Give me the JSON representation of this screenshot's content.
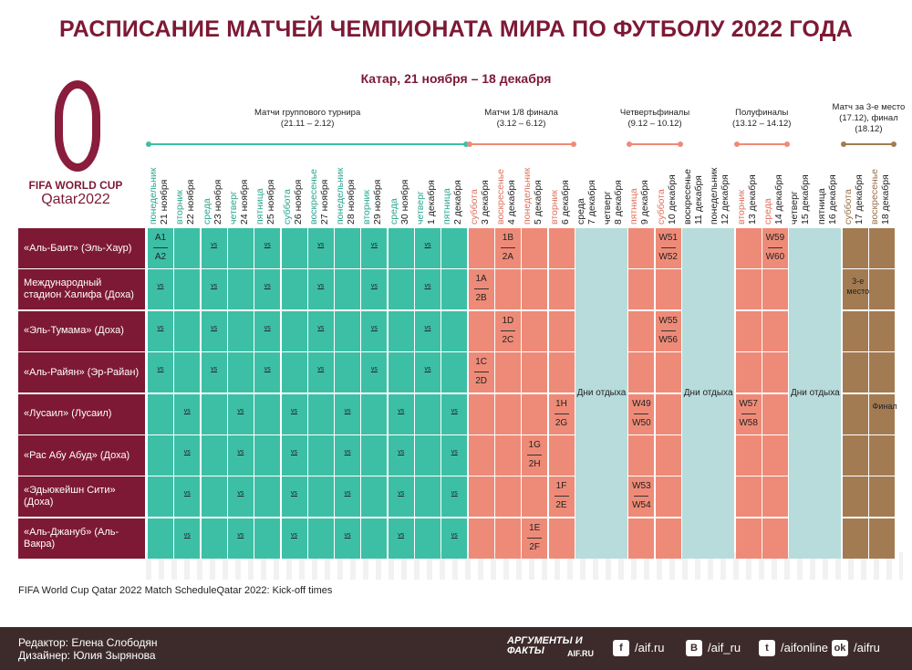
{
  "header": {
    "title": "РАСПИСАНИЕ МАТЧЕЙ ЧЕМПИОНАТА МИРА ПО ФУТБОЛУ 2022 ГОДА",
    "subtitle": "Катар, 21 ноября – 18 декабря"
  },
  "logo": {
    "line1": "FIFA WORLD CUP",
    "line2": "Qatar2022"
  },
  "phases": [
    {
      "title": "Матчи группового турнира",
      "range": "(21.11 – 2.12)",
      "color": "#3dbfa6",
      "weekday_color": "#27a68e",
      "days": [
        {
          "weekday": "понедельник",
          "date": "21 ноября"
        },
        {
          "weekday": "вторник",
          "date": "22 ноября"
        },
        {
          "weekday": "среда",
          "date": "23 ноября"
        },
        {
          "weekday": "четверг",
          "date": "24 ноября"
        },
        {
          "weekday": "пятница",
          "date": "25 ноября"
        },
        {
          "weekday": "суббота",
          "date": "26 ноября"
        },
        {
          "weekday": "воскресенье",
          "date": "27 ноября"
        },
        {
          "weekday": "понедельник",
          "date": "28 ноября"
        },
        {
          "weekday": "вторник",
          "date": "29 ноября"
        },
        {
          "weekday": "среда",
          "date": "30 ноября"
        },
        {
          "weekday": "четверг",
          "date": "1 декабря"
        },
        {
          "weekday": "пятница",
          "date": "2 декабря"
        }
      ]
    },
    {
      "title": "Матчи 1/8 финала",
      "range": "(3.12 – 6.12)",
      "color": "#ee8b78",
      "weekday_color": "#e0705c",
      "days": [
        {
          "weekday": "суббота",
          "date": "3 декабря"
        },
        {
          "weekday": "воскресенье",
          "date": "4 декабря"
        },
        {
          "weekday": "понедельник",
          "date": "5 декабря"
        },
        {
          "weekday": "вторник",
          "date": "6 декабря"
        }
      ]
    },
    {
      "label": "Дни отдыха",
      "color": "#b8dcdb",
      "weekday_color": "#222222",
      "days": [
        {
          "weekday": "среда",
          "date": "7 декабря"
        },
        {
          "weekday": "четверг",
          "date": "8 декабря"
        }
      ]
    },
    {
      "title": "Четвертьфиналы",
      "range": "(9.12 – 10.12)",
      "color": "#ee8b78",
      "weekday_color": "#e0705c",
      "days": [
        {
          "weekday": "пятница",
          "date": "9 декабря"
        },
        {
          "weekday": "суббота",
          "date": "10 декабря"
        }
      ]
    },
    {
      "label": "Дни отдыха",
      "color": "#b8dcdb",
      "weekday_color": "#222222",
      "days": [
        {
          "weekday": "воскресенье",
          "date": "11 декабря"
        },
        {
          "weekday": "понедельник",
          "date": "12 декабря"
        }
      ]
    },
    {
      "title": "Полуфиналы",
      "range": "(13.12 – 14.12)",
      "color": "#ee8b78",
      "weekday_color": "#e0705c",
      "days": [
        {
          "weekday": "вторник",
          "date": "13 декабря"
        },
        {
          "weekday": "среда",
          "date": "14 декабря"
        }
      ]
    },
    {
      "label": "Дни отдыха",
      "color": "#b8dcdb",
      "weekday_color": "#222222",
      "days": [
        {
          "weekday": "четверг",
          "date": "15 декабря"
        },
        {
          "weekday": "пятница",
          "date": "16 декабря"
        }
      ]
    },
    {
      "title": "Матч за 3-е место (17.12), финал (18.12)",
      "color": "#a37b53",
      "weekday_color": "#9a7048",
      "days": [
        {
          "weekday": "суббота",
          "date": "17 декабря"
        },
        {
          "weekday": "воскресенье",
          "date": "18 декабря"
        }
      ]
    }
  ],
  "stadiums": [
    {
      "name": "«Аль-Баит» (Эль-Хаур)",
      "cells": [
        {
          "top": "A1",
          "bottom": "A2"
        },
        null,
        "vs",
        null,
        "vs",
        null,
        "vs",
        null,
        "vs",
        null,
        "vs",
        null,
        null,
        {
          "top": "1B",
          "bottom": "2A"
        },
        null,
        null,
        null,
        null,
        null,
        {
          "top": "W51",
          "bottom": "W52"
        },
        null,
        null,
        null,
        {
          "top": "W59",
          "bottom": "W60"
        },
        null,
        null,
        null,
        null
      ]
    },
    {
      "name": "Международный стадион Халифа (Доха)",
      "cells": [
        "vs",
        null,
        "vs",
        null,
        "vs",
        null,
        "vs",
        null,
        "vs",
        null,
        "vs",
        null,
        {
          "top": "1A",
          "bottom": "2B"
        },
        null,
        null,
        null,
        null,
        null,
        null,
        null,
        null,
        null,
        null,
        null,
        null,
        null,
        "3-е место",
        null
      ]
    },
    {
      "name": "«Эль-Тумама» (Доха)",
      "cells": [
        "vs",
        null,
        "vs",
        null,
        "vs",
        null,
        "vs",
        null,
        "vs",
        null,
        "vs",
        null,
        null,
        {
          "top": "1D",
          "bottom": "2C"
        },
        null,
        null,
        null,
        null,
        null,
        {
          "top": "W55",
          "bottom": "W56"
        },
        null,
        null,
        null,
        null,
        null,
        null,
        null,
        null
      ]
    },
    {
      "name": "«Аль-Райян» (Эр-Райан)",
      "cells": [
        "vs",
        null,
        "vs",
        null,
        "vs",
        null,
        "vs",
        null,
        "vs",
        null,
        "vs",
        null,
        {
          "top": "1C",
          "bottom": "2D"
        },
        null,
        null,
        null,
        null,
        null,
        null,
        null,
        null,
        null,
        null,
        null,
        null,
        null,
        null,
        null
      ]
    },
    {
      "name": "«Лусаил» (Лусаил)",
      "cells": [
        null,
        "vs",
        null,
        "vs",
        null,
        "vs",
        null,
        "vs",
        null,
        "vs",
        null,
        "vs",
        null,
        null,
        null,
        {
          "top": "1H",
          "bottom": "2G"
        },
        null,
        null,
        {
          "top": "W49",
          "bottom": "W50"
        },
        null,
        null,
        null,
        {
          "top": "W57",
          "bottom": "W58"
        },
        null,
        null,
        null,
        null,
        "Финал"
      ]
    },
    {
      "name": "«Рас Абу Абуд» (Доха)",
      "cells": [
        null,
        "vs",
        null,
        "vs",
        null,
        "vs",
        null,
        "vs",
        null,
        "vs",
        null,
        "vs",
        null,
        null,
        {
          "top": "1G",
          "bottom": "2H"
        },
        null,
        null,
        null,
        null,
        null,
        null,
        null,
        null,
        null,
        null,
        null,
        null,
        null
      ]
    },
    {
      "name": "«Эдьюкейшн Сити» (Доха)",
      "cells": [
        null,
        "vs",
        null,
        "vs",
        null,
        "vs",
        null,
        "vs",
        null,
        "vs",
        null,
        "vs",
        null,
        null,
        null,
        {
          "top": "1F",
          "bottom": "2E"
        },
        null,
        null,
        {
          "top": "W53",
          "bottom": "W54"
        },
        null,
        null,
        null,
        null,
        null,
        null,
        null,
        null,
        null
      ]
    },
    {
      "name": "«Аль-Джануб» (Аль-Вакра)",
      "cells": [
        null,
        "vs",
        null,
        "vs",
        null,
        "vs",
        null,
        "vs",
        null,
        "vs",
        null,
        "vs",
        null,
        null,
        {
          "top": "1E",
          "bottom": "2F"
        },
        null,
        null,
        null,
        null,
        null,
        null,
        null,
        null,
        null,
        null,
        null,
        null,
        null
      ]
    }
  ],
  "note": "FIFA World Cup Qatar 2022 Match ScheduleQatar 2022: Kick-off times",
  "footer": {
    "editor": "Редактор: Елена Слободян",
    "designer": "Дизайнер: Юлия Зырянова",
    "brand": "АРГУМЕНТЫ И ФАКТЫ",
    "brand_site": "AIF.RU",
    "socials": [
      "/aif.ru",
      "/aif_ru",
      "/aifonline",
      "/aifru"
    ]
  }
}
